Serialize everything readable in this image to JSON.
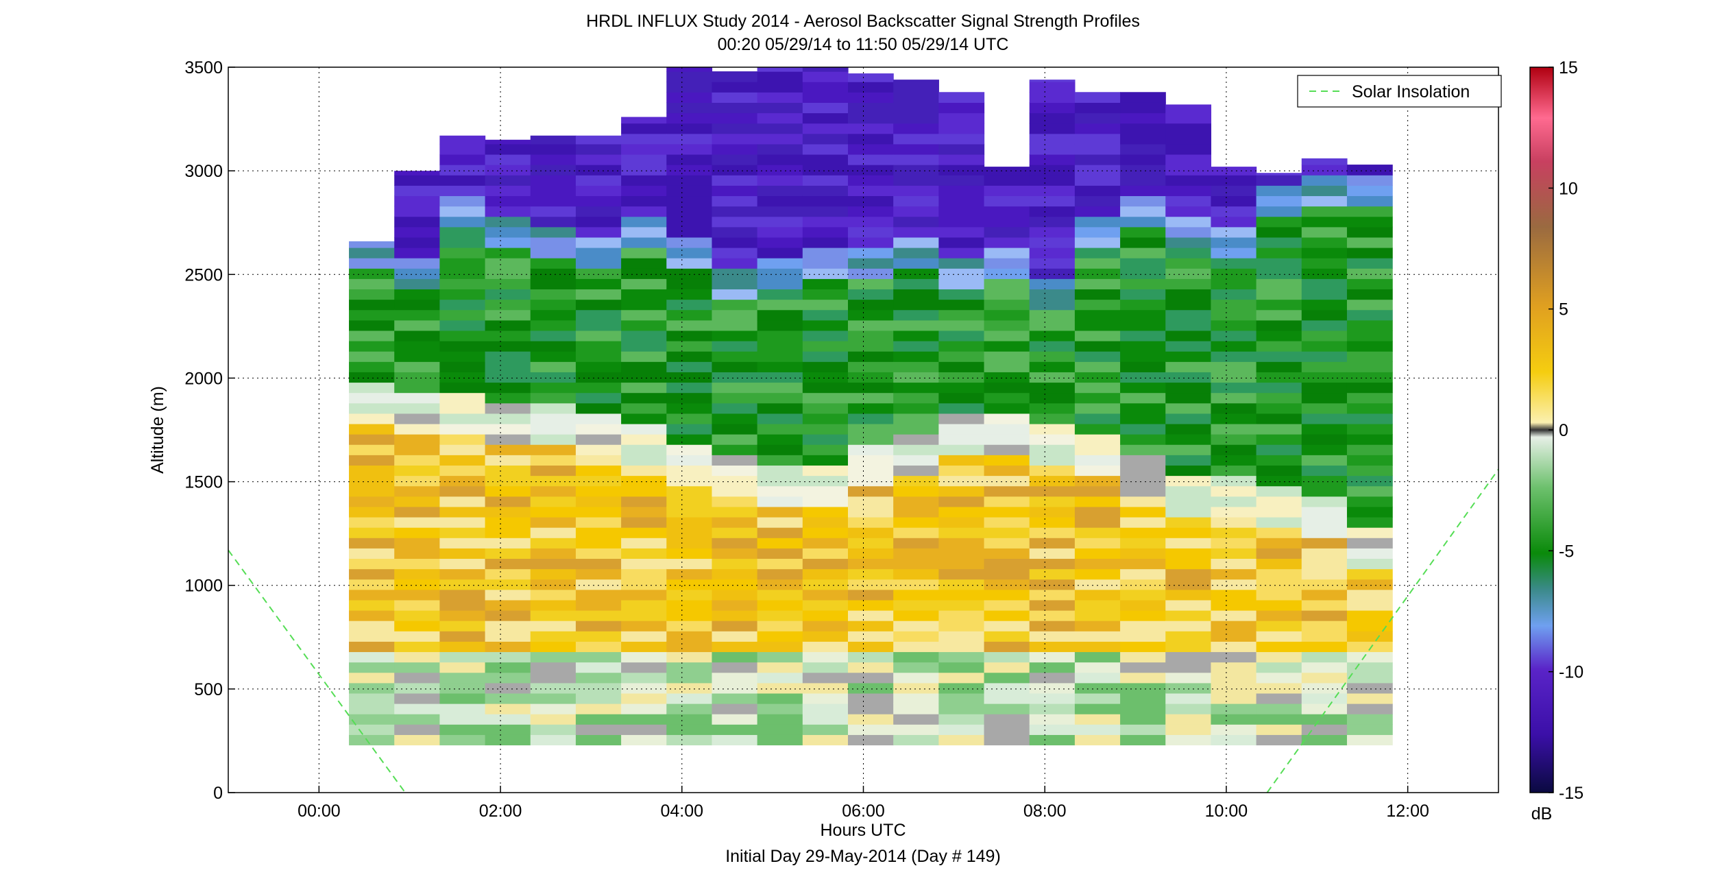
{
  "chart_data": {
    "type": "heatmap",
    "title": "HRDL INFLUX Study 2014 - Aerosol Backscatter Signal Strength Profiles",
    "subtitle": "00:20 05/29/14 to 11:50 05/29/14  UTC",
    "xlabel": "Hours UTC",
    "footer": "Initial Day 29-May-2014 (Day # 149)",
    "ylabel": "Altitude (m)",
    "xlim": [
      -1,
      13
    ],
    "ylim": [
      0,
      3500
    ],
    "x_ticks": [
      0,
      2,
      4,
      6,
      8,
      10,
      12
    ],
    "x_tick_labels": [
      "00:00",
      "02:00",
      "04:00",
      "06:00",
      "08:00",
      "10:00",
      "12:00"
    ],
    "y_ticks": [
      0,
      500,
      1000,
      1500,
      2000,
      2500,
      3000,
      3500
    ],
    "y_tick_labels": [
      "0",
      "500",
      "1000",
      "1500",
      "2000",
      "2500",
      "3000",
      "3500"
    ],
    "grid": true,
    "legend": {
      "position": "top-right",
      "entries": [
        "Solar Insolation"
      ]
    },
    "colorbar": {
      "label": "dB",
      "range": [
        -15,
        15
      ],
      "ticks": [
        -15,
        -10,
        -5,
        0,
        5,
        10,
        15
      ],
      "tick_labels": [
        "-15",
        "-10",
        "-5",
        "0",
        "5",
        "10",
        "15"
      ]
    },
    "series": [
      {
        "name": "Solar Insolation",
        "type": "line",
        "style": "dashed",
        "color": "#55dd55",
        "segments": [
          {
            "x": [
              -1,
              0.95
            ],
            "y": [
              1170,
              0
            ]
          },
          {
            "x": [
              10.45,
              13
            ],
            "y": [
              0,
              1560
            ]
          }
        ]
      }
    ],
    "profiles": {
      "x_start": [
        0.33,
        0.83,
        1.33,
        1.83,
        2.33,
        2.83,
        3.33,
        3.83,
        4.33,
        4.83,
        5.33,
        5.83,
        6.33,
        6.83,
        7.33,
        7.83,
        8.33,
        8.83,
        9.33,
        9.83,
        10.33,
        10.83,
        11.33
      ],
      "x_end": [
        0.83,
        1.33,
        1.83,
        2.33,
        2.83,
        3.33,
        3.83,
        4.33,
        4.83,
        5.33,
        5.83,
        6.33,
        6.83,
        7.33,
        7.83,
        8.33,
        8.83,
        9.33,
        9.83,
        10.33,
        10.83,
        11.33,
        11.83
      ],
      "base_altitude": 230,
      "top_altitude": [
        2660,
        3000,
        3170,
        3150,
        3170,
        3170,
        3260,
        3500,
        3480,
        3500,
        3500,
        3470,
        3440,
        3380,
        3020,
        3440,
        3380,
        3380,
        3320,
        3020,
        2990,
        3060,
        3030
      ],
      "marine_layer_top": [
        1900,
        1850,
        1850,
        1800,
        1800,
        1760,
        1700,
        1620,
        1580,
        1500,
        1520,
        1600,
        1650,
        1780,
        1750,
        1700,
        1650,
        1550,
        1480,
        1450,
        1430,
        1350,
        1200
      ],
      "mid_layer_top": [
        2500,
        2400,
        2700,
        2600,
        2550,
        2500,
        2600,
        2500,
        2350,
        2400,
        2450,
        2450,
        2500,
        2400,
        2450,
        2300,
        2600,
        2700,
        2600,
        2550,
        2750,
        2800,
        2800
      ]
    }
  }
}
